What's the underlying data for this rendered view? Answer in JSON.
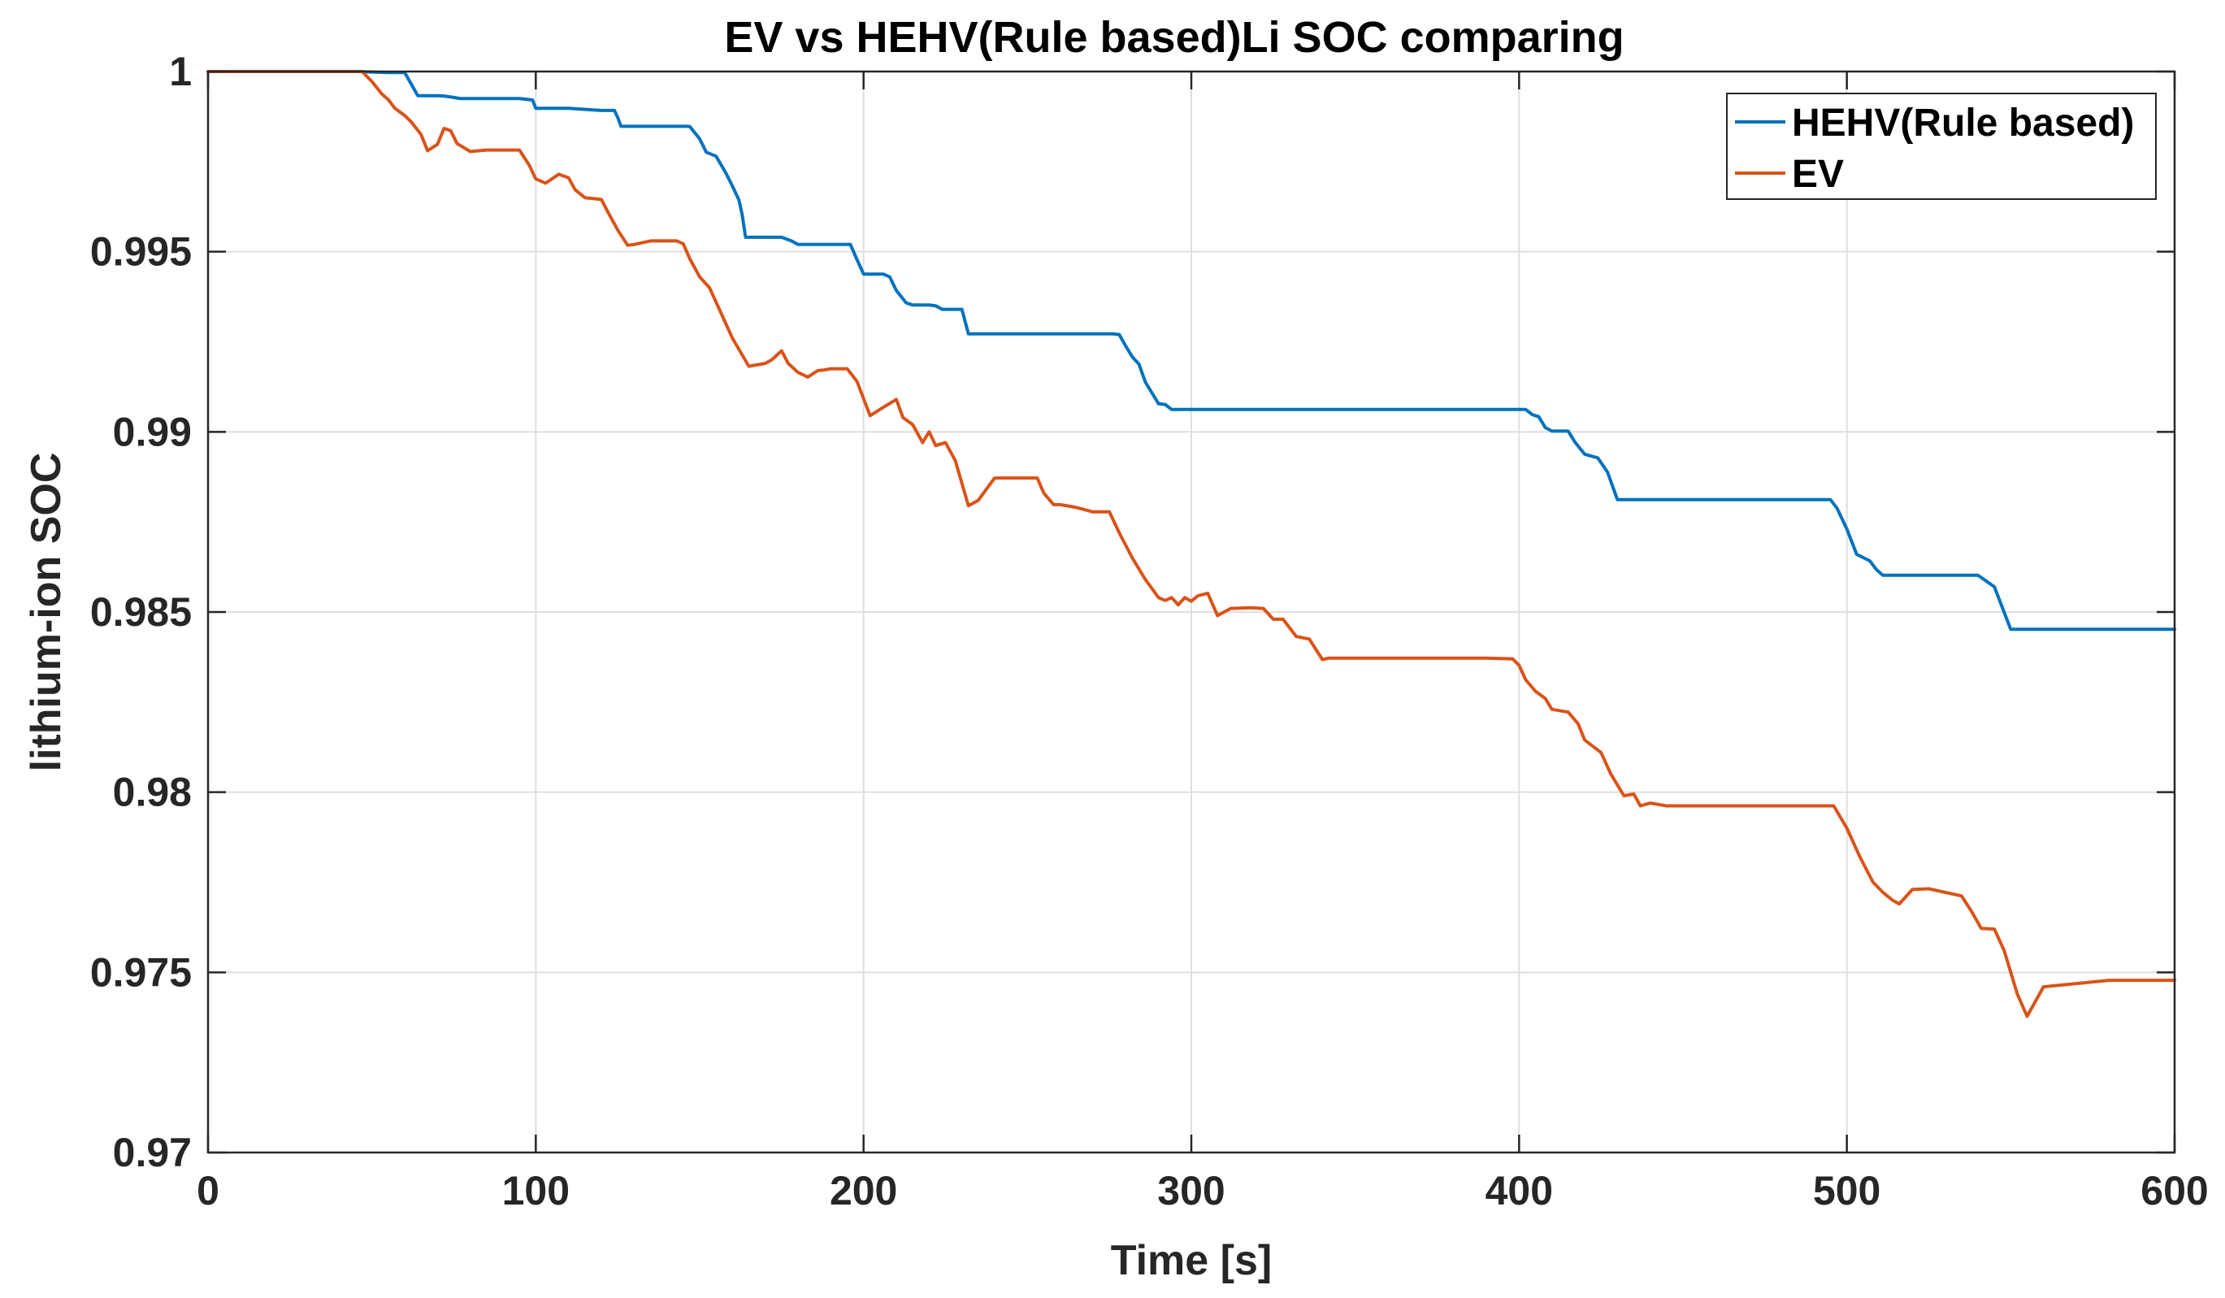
{
  "chart_data": {
    "type": "line",
    "title": "EV vs HEHV(Rule based)Li SOC comparing",
    "xlabel": "Time [s]",
    "ylabel": "lithium-ion SOC",
    "xlim": [
      0,
      600
    ],
    "ylim": [
      0.97,
      1.0
    ],
    "xticks": [
      0,
      100,
      200,
      300,
      400,
      500,
      600
    ],
    "xtick_labels": [
      "0",
      "100",
      "200",
      "300",
      "400",
      "500",
      "600"
    ],
    "yticks": [
      0.97,
      0.975,
      0.98,
      0.985,
      0.99,
      0.995,
      1.0
    ],
    "ytick_labels": [
      "0.97",
      "0.975",
      "0.98",
      "0.985",
      "0.99",
      "0.995",
      "1"
    ],
    "grid": true,
    "legend_position": "top-right",
    "series": [
      {
        "name": "HEHV(Rule based)",
        "color": "#0072BD",
        "x": [
          0,
          47,
          48,
          55,
          58,
          60,
          62,
          64,
          70,
          72,
          75,
          77,
          85,
          95,
          99,
          100,
          110,
          120,
          124,
          125,
          126,
          128,
          140,
          146,
          147,
          150,
          152,
          155,
          158,
          160,
          162,
          163,
          164,
          170,
          172,
          175,
          178,
          180,
          190,
          196,
          198,
          200,
          206,
          208,
          210,
          213,
          215,
          220,
          222,
          224,
          230,
          232,
          240,
          250,
          260,
          270,
          276,
          278,
          280,
          282,
          284,
          286,
          288,
          290,
          292,
          294,
          300,
          330,
          360,
          390,
          398,
          402,
          404,
          406,
          408,
          410,
          412,
          415,
          417,
          420,
          424,
          427,
          430,
          440,
          460,
          480,
          495,
          497,
          500,
          503,
          507,
          509,
          511,
          513,
          515,
          530,
          540,
          545,
          550,
          552,
          560,
          600
        ],
        "y": [
          1.0,
          1.0,
          0.99999,
          0.99997,
          0.99997,
          0.99997,
          0.99965,
          0.99933,
          0.99933,
          0.99932,
          0.99928,
          0.99925,
          0.99925,
          0.99925,
          0.99921,
          0.99898,
          0.99898,
          0.99892,
          0.99892,
          0.99872,
          0.99848,
          0.99848,
          0.99848,
          0.99848,
          0.99847,
          0.99813,
          0.99776,
          0.99765,
          0.99718,
          0.99682,
          0.99643,
          0.99601,
          0.9954,
          0.9954,
          0.9954,
          0.9954,
          0.9953,
          0.9952,
          0.9952,
          0.9952,
          0.99478,
          0.99438,
          0.99438,
          0.9943,
          0.99392,
          0.99358,
          0.99352,
          0.99352,
          0.9935,
          0.9934,
          0.9934,
          0.99272,
          0.99272,
          0.99272,
          0.99272,
          0.99272,
          0.99272,
          0.9927,
          0.99238,
          0.99208,
          0.99188,
          0.99138,
          0.99108,
          0.99078,
          0.99076,
          0.99062,
          0.99062,
          0.99062,
          0.99062,
          0.99062,
          0.99062,
          0.99062,
          0.99048,
          0.99042,
          0.99012,
          0.99002,
          0.99002,
          0.99002,
          0.98972,
          0.98938,
          0.98928,
          0.98888,
          0.98812,
          0.98812,
          0.98812,
          0.98812,
          0.98812,
          0.98788,
          0.9873,
          0.9866,
          0.98642,
          0.98618,
          0.98602,
          0.98602,
          0.98602,
          0.98602,
          0.98602,
          0.9857,
          0.98452,
          0.98452,
          0.98452,
          0.98452
        ]
      },
      {
        "name": "EV",
        "color": "#D95319",
        "x": [
          0,
          47,
          50,
          53,
          55,
          57,
          60,
          62,
          65,
          67,
          70,
          72,
          74,
          76,
          80,
          85,
          95,
          98,
          100,
          103,
          107,
          110,
          112,
          115,
          120,
          122,
          125,
          128,
          130,
          135,
          140,
          143,
          145,
          147,
          150,
          153,
          156,
          160,
          165,
          170,
          172,
          175,
          177,
          180,
          183,
          186,
          188,
          190,
          195,
          198,
          202,
          206,
          210,
          212,
          215,
          218,
          220,
          222,
          225,
          228,
          232,
          235,
          240,
          245,
          250,
          253,
          255,
          258,
          260,
          265,
          270,
          275,
          278,
          282,
          286,
          290,
          292,
          294,
          296,
          298,
          300,
          302,
          305,
          308,
          312,
          318,
          322,
          325,
          328,
          332,
          336,
          340,
          342,
          350,
          370,
          390,
          398,
          400,
          402,
          405,
          408,
          410,
          415,
          418,
          420,
          425,
          428,
          432,
          435,
          437,
          440,
          445,
          450,
          470,
          490,
          496,
          500,
          504,
          508,
          511,
          514,
          516,
          520,
          525,
          530,
          535,
          538,
          541,
          545,
          548,
          552,
          555,
          560,
          580,
          600
        ],
        "y": [
          1.0,
          1.0,
          0.99972,
          0.99938,
          0.99922,
          0.99898,
          0.99878,
          0.9986,
          0.99825,
          0.9978,
          0.99798,
          0.99842,
          0.99836,
          0.998,
          0.99778,
          0.99782,
          0.99782,
          0.9974,
          0.99702,
          0.9969,
          0.99715,
          0.99705,
          0.99672,
          0.9965,
          0.99645,
          0.9961,
          0.9956,
          0.99518,
          0.9952,
          0.9953,
          0.9953,
          0.9953,
          0.99522,
          0.9948,
          0.9943,
          0.994,
          0.9934,
          0.9926,
          0.99182,
          0.9919,
          0.992,
          0.99225,
          0.9919,
          0.99165,
          0.99152,
          0.9917,
          0.99172,
          0.99175,
          0.99175,
          0.9914,
          0.99045,
          0.99068,
          0.9909,
          0.9904,
          0.9902,
          0.9897,
          0.99,
          0.98962,
          0.9897,
          0.9892,
          0.98795,
          0.9881,
          0.98872,
          0.98872,
          0.98872,
          0.98872,
          0.9883,
          0.98798,
          0.98798,
          0.9879,
          0.98778,
          0.98778,
          0.9872,
          0.9865,
          0.9859,
          0.9854,
          0.98532,
          0.9854,
          0.9852,
          0.9854,
          0.9853,
          0.98545,
          0.98552,
          0.9849,
          0.9851,
          0.98512,
          0.9851,
          0.9848,
          0.9848,
          0.98432,
          0.98425,
          0.98368,
          0.98372,
          0.98372,
          0.98372,
          0.98372,
          0.9837,
          0.98352,
          0.98312,
          0.9828,
          0.9826,
          0.9823,
          0.98222,
          0.9819,
          0.98145,
          0.9811,
          0.9805,
          0.9799,
          0.97995,
          0.97962,
          0.9797,
          0.97962,
          0.97962,
          0.97962,
          0.97962,
          0.97962,
          0.979,
          0.9782,
          0.9775,
          0.97722,
          0.977,
          0.9769,
          0.9773,
          0.97732,
          0.97722,
          0.97712,
          0.9767,
          0.97622,
          0.9762,
          0.9756,
          0.9744,
          0.97378,
          0.9746,
          0.97478,
          0.97478
        ]
      }
    ]
  }
}
